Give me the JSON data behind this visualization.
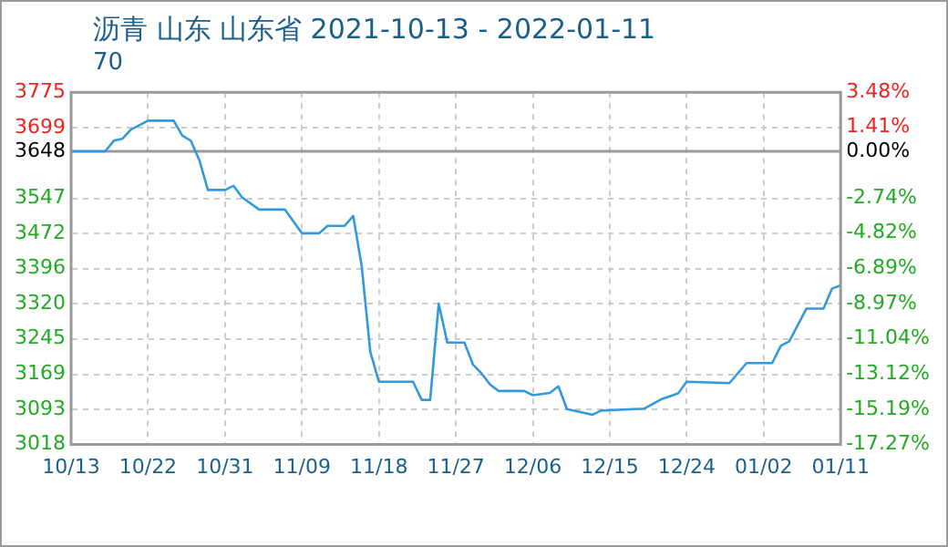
{
  "chart_data": {
    "type": "line",
    "title": "沥青 山东 山东省 2021-10-13 - 2022-01-11",
    "subtitle": "70",
    "x": [
      "2021-10-13",
      "2021-10-17",
      "2021-10-18",
      "2021-10-19",
      "2021-10-20",
      "2021-10-22",
      "2021-10-25",
      "2021-10-26",
      "2021-10-27",
      "2021-10-28",
      "2021-10-29",
      "2021-10-31",
      "2021-11-01",
      "2021-11-02",
      "2021-11-04",
      "2021-11-07",
      "2021-11-09",
      "2021-11-11",
      "2021-11-12",
      "2021-11-14",
      "2021-11-15",
      "2021-11-16",
      "2021-11-17",
      "2021-11-18",
      "2021-11-22",
      "2021-11-23",
      "2021-11-24",
      "2021-11-25",
      "2021-11-26",
      "2021-11-28",
      "2021-11-29",
      "2021-11-30",
      "2021-12-01",
      "2021-12-02",
      "2021-12-05",
      "2021-12-06",
      "2021-12-08",
      "2021-12-09",
      "2021-12-10",
      "2021-12-13",
      "2021-12-14",
      "2021-12-19",
      "2021-12-21",
      "2021-12-23",
      "2021-12-24",
      "2021-12-29",
      "2021-12-31",
      "2022-01-03",
      "2022-01-04",
      "2022-01-05",
      "2022-01-07",
      "2022-01-09",
      "2022-01-10",
      "2022-01-11"
    ],
    "series": [
      {
        "color": "#3399dd",
        "values": [
          3648,
          3648,
          3671,
          3675,
          3695,
          3714,
          3714,
          3682,
          3671,
          3629,
          3565,
          3565,
          3574,
          3549,
          3523,
          3523,
          3472,
          3472,
          3488,
          3488,
          3509,
          3400,
          3217,
          3153,
          3153,
          3114,
          3114,
          3321,
          3237,
          3237,
          3190,
          3171,
          3147,
          3133,
          3133,
          3124,
          3129,
          3143,
          3094,
          3082,
          3091,
          3095,
          3115,
          3128,
          3153,
          3150,
          3193,
          3193,
          3230,
          3240,
          3310,
          3310,
          3353,
          3360
        ]
      }
    ],
    "xlim": [
      "2021-10-13",
      "2022-01-11"
    ],
    "xticks": [
      {
        "value": "2021-10-13",
        "label": "10/13"
      },
      {
        "value": "2021-10-22",
        "label": "10/22"
      },
      {
        "value": "2021-10-31",
        "label": "10/31"
      },
      {
        "value": "2021-11-09",
        "label": "11/09"
      },
      {
        "value": "2021-11-18",
        "label": "11/18"
      },
      {
        "value": "2021-11-27",
        "label": "11/27"
      },
      {
        "value": "2021-12-06",
        "label": "12/06"
      },
      {
        "value": "2021-12-15",
        "label": "12/15"
      },
      {
        "value": "2021-12-24",
        "label": "12/24"
      },
      {
        "value": "2022-01-02",
        "label": "01/02"
      },
      {
        "value": "2022-01-11",
        "label": "01/11"
      }
    ],
    "ylim": [
      3018,
      3775
    ],
    "yticks": [
      3018,
      3093,
      3169,
      3245,
      3320,
      3396,
      3472,
      3547,
      3648,
      3699,
      3775
    ],
    "y2lim": [
      -17.27,
      3.48
    ],
    "y2ticks": [
      {
        "value": -17.27,
        "label": "-17.27%"
      },
      {
        "value": -15.19,
        "label": "-15.19%"
      },
      {
        "value": -13.12,
        "label": "-13.12%"
      },
      {
        "value": -11.04,
        "label": "-11.04%"
      },
      {
        "value": -8.97,
        "label": "-8.97%"
      },
      {
        "value": -6.89,
        "label": "-6.89%"
      },
      {
        "value": -4.82,
        "label": "-4.82%"
      },
      {
        "value": -2.74,
        "label": "-2.74%"
      },
      {
        "value": 0,
        "label": "0.00%"
      },
      {
        "value": 1.41,
        "label": "1.41%"
      },
      {
        "value": 3.48,
        "label": "3.48%"
      }
    ],
    "ref_lines": [
      {
        "axis": "y",
        "value": 3648,
        "color": "#999999"
      }
    ],
    "grid": true,
    "legend": false,
    "marker": "none",
    "line_style": "solid"
  }
}
